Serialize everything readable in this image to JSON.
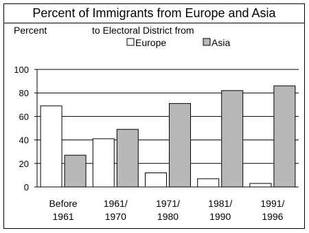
{
  "chart_data": {
    "type": "bar",
    "title": "Percent of Immigrants from Europe and Asia",
    "ylabel": "Percent",
    "legend_title": "to Electoral District from",
    "xlabel": "",
    "categories": [
      [
        "Before",
        "1961"
      ],
      [
        "1961/",
        "1970"
      ],
      [
        "1971/",
        "1980"
      ],
      [
        "1981/",
        "1990"
      ],
      [
        "1991/",
        "1996"
      ]
    ],
    "series": [
      {
        "name": "Europe",
        "values": [
          69,
          41,
          12,
          7,
          3
        ],
        "color": "#ffffff"
      },
      {
        "name": "Asia",
        "values": [
          27,
          49,
          71,
          82,
          86
        ],
        "color": "#b8b8b8"
      }
    ],
    "ylim": [
      0,
      100
    ],
    "yticks": [
      0,
      20,
      40,
      60,
      80,
      100
    ],
    "grid": true,
    "legend_position": "top-center"
  }
}
